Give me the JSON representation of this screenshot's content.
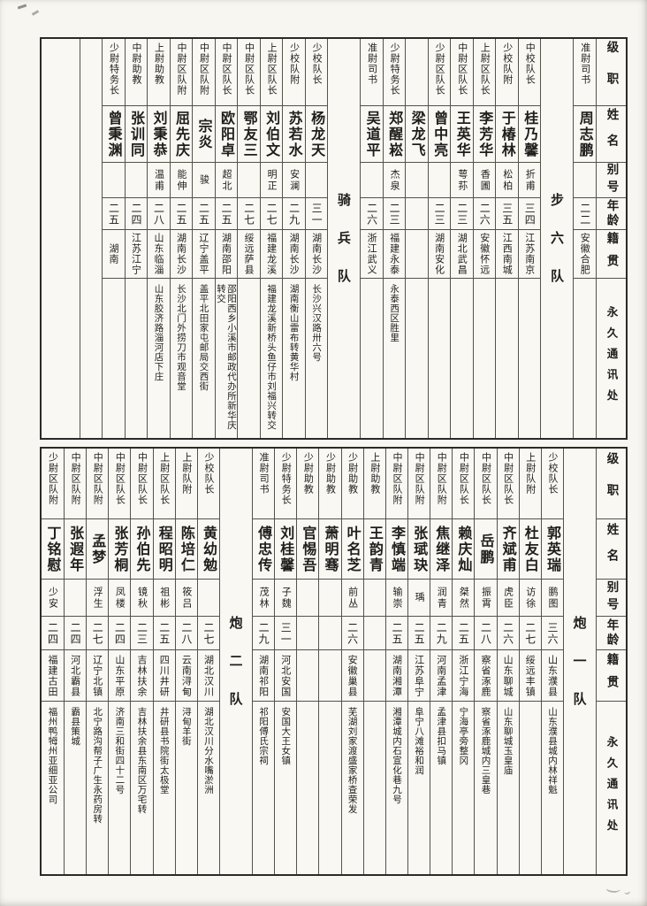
{
  "row_headers": [
    "级职",
    "姓名",
    "别号",
    "年龄",
    "籍贯",
    "永久通讯处"
  ],
  "colors": {
    "page_bg": "#f8f6f1",
    "ink": "#1f1e1c",
    "grid_line": "#55524c",
    "frame": "#2b2a27"
  },
  "tables": [
    {
      "id": "top",
      "columns": [
        {
          "type": "header"
        },
        {
          "type": "person",
          "rank": "准尉司书",
          "name": "周志鹏",
          "alias": "",
          "age": "二二",
          "native": "安徽合肥",
          "address": ""
        },
        {
          "type": "section",
          "label": "步六队"
        },
        {
          "type": "person",
          "rank": "中校队长",
          "name": "桂乃馨",
          "alias": "折甫",
          "age": "三四",
          "native": "江苏南京",
          "address": ""
        },
        {
          "type": "person",
          "rank": "少校队附",
          "name": "于椿林",
          "alias": "松柏",
          "age": "三五",
          "native": "江西南城",
          "address": ""
        },
        {
          "type": "person",
          "rank": "上尉区队长",
          "name": "李芳华",
          "alias": "香圃",
          "age": "二六",
          "native": "安徽怀远",
          "address": ""
        },
        {
          "type": "person",
          "rank": "中尉区队长",
          "name": "王英华",
          "alias": "萼荪",
          "age": "二三",
          "native": "湖北武昌",
          "address": ""
        },
        {
          "type": "person",
          "rank": "少尉区队长",
          "name": "曾中亮",
          "alias": "",
          "age": "二三",
          "native": "湖南安化",
          "address": ""
        },
        {
          "type": "person",
          "rank": "",
          "name": "梁龙飞",
          "alias": "",
          "age": "",
          "native": "",
          "address": ""
        },
        {
          "type": "person",
          "rank": "少尉特务长",
          "name": "郑醒崧",
          "alias": "杰泉",
          "age": "二三",
          "native": "福建永泰",
          "address": "永泰西区胜里"
        },
        {
          "type": "person",
          "rank": "准尉司书",
          "name": "吴道平",
          "alias": "",
          "age": "二六",
          "native": "浙江武义",
          "address": ""
        },
        {
          "type": "section",
          "label": "骑兵队"
        },
        {
          "type": "person",
          "rank": "少校队长",
          "name": "杨龙天",
          "alias": "",
          "age": "三一",
          "native": "湖南长沙",
          "address": "长沙兴汉路卅六号"
        },
        {
          "type": "person",
          "rank": "少校队附",
          "name": "苏若水",
          "alias": "安澜",
          "age": "二九",
          "native": "湖南长沙",
          "address": "湖南衡山雷布转黄华村"
        },
        {
          "type": "person",
          "rank": "上尉区队长",
          "name": "刘伯文",
          "alias": "明正",
          "age": "二七",
          "native": "福建龙溪",
          "address": "福建龙溪新桥头鱼仔市刘福兴转交"
        },
        {
          "type": "person",
          "rank": "中尉区队长",
          "name": "鄂友三",
          "alias": "",
          "age": "二七",
          "native": "绥远萨县",
          "address": ""
        },
        {
          "type": "person",
          "rank": "中尉区队长",
          "name": "欧阳卓",
          "alias": "超北",
          "age": "二五",
          "native": "湖南邵阳",
          "address": "邵阳西乡小溪市邮政代办所新华庆转交"
        },
        {
          "type": "person",
          "rank": "中尉区队附",
          "name": "宗炎",
          "alias": "骏",
          "age": "二五",
          "native": "辽宁盖平",
          "address": "盖平北田家屯邮局交西街"
        },
        {
          "type": "person",
          "rank": "中尉区队附",
          "name": "屈先庆",
          "alias": "能伸",
          "age": "二五",
          "native": "湖南长沙",
          "address": "长沙北门外捞刀市观音堂"
        },
        {
          "type": "person",
          "rank": "上尉助教",
          "name": "刘秉恭",
          "alias": "温甫",
          "age": "二八",
          "native": "山东临淄",
          "address": "山东胶济路淄河店下庄"
        },
        {
          "type": "person",
          "rank": "中尉助教",
          "name": "张训同",
          "alias": "",
          "age": "二四",
          "native": "江苏江宁",
          "address": ""
        },
        {
          "type": "person",
          "rank": "少尉特务长",
          "name": "曾秉渊",
          "alias": "",
          "age": "二五",
          "native": "湖南",
          "address": ""
        },
        {
          "type": "empty"
        },
        {
          "type": "empty"
        }
      ]
    },
    {
      "id": "bottom",
      "columns": [
        {
          "type": "header"
        },
        {
          "type": "section",
          "label": "炮一队"
        },
        {
          "type": "person",
          "rank": "少校队长",
          "name": "郭英瑞",
          "alias": "鹏图",
          "age": "三六",
          "native": "山东濮县",
          "address": "山东濮县城内林祥魁"
        },
        {
          "type": "person",
          "rank": "上尉队附",
          "name": "杜友白",
          "alias": "访徐",
          "age": "二七",
          "native": "绥远丰镇",
          "address": ""
        },
        {
          "type": "person",
          "rank": "中尉区队长",
          "name": "齐斌甫",
          "alias": "虎臣",
          "age": "二六",
          "native": "山东聊城",
          "address": "山东聊城玉皇庙"
        },
        {
          "type": "person",
          "rank": "中尉区队长",
          "name": "岳鹏",
          "alias": "振霄",
          "age": "二八",
          "native": "察省涿鹿",
          "address": "察省涿鹿城内三皇巷"
        },
        {
          "type": "person",
          "rank": "中尉区队长",
          "name": "赖庆灿",
          "alias": "桀然",
          "age": "二五",
          "native": "浙江宁海",
          "address": "宁海亭旁整冈"
        },
        {
          "type": "person",
          "rank": "中尉区队附",
          "name": "焦继泽",
          "alias": "润青",
          "age": "二九",
          "native": "河南孟津",
          "address": "孟津县扣马镇"
        },
        {
          "type": "person",
          "rank": "中尉区队附",
          "name": "张珷玦",
          "alias": "瑀",
          "age": "二五",
          "native": "江苏阜宁",
          "address": "阜宁八滩裕和润"
        },
        {
          "type": "person",
          "rank": "中尉区队附",
          "name": "李慎端",
          "alias": "输崇",
          "age": "二五",
          "native": "湖南湘潭",
          "address": "湘潭城内石宣化巷九号"
        },
        {
          "type": "person",
          "rank": "上尉助教",
          "name": "王韵青",
          "alias": "",
          "age": "",
          "native": "",
          "address": ""
        },
        {
          "type": "person",
          "rank": "少尉助教",
          "name": "叶名芝",
          "alias": "前丛",
          "age": "二六",
          "native": "安徽巢县",
          "address": "芜湖刘家渡盛家桥查荣发"
        },
        {
          "type": "person",
          "rank": "少尉助教",
          "name": "萧明骞",
          "alias": "",
          "age": "",
          "native": "",
          "address": ""
        },
        {
          "type": "person",
          "rank": "少尉助教",
          "name": "官惕吾",
          "alias": "",
          "age": "",
          "native": "",
          "address": ""
        },
        {
          "type": "person",
          "rank": "少尉特务长",
          "name": "刘桂馨",
          "alias": "子魏",
          "age": "三一",
          "native": "河北安国",
          "address": "安国大王女镇"
        },
        {
          "type": "person",
          "rank": "准尉司书",
          "name": "傅忠传",
          "alias": "茂林",
          "age": "二九",
          "native": "湖南祁阳",
          "address": "祁阳傅氏宗祠"
        },
        {
          "type": "section",
          "label": "炮二队"
        },
        {
          "type": "person",
          "rank": "少校队长",
          "name": "黄幼勉",
          "alias": "",
          "age": "二七",
          "native": "湖北汉川",
          "address": "湖北汉川分水嘴淤洲"
        },
        {
          "type": "person",
          "rank": "上尉队附",
          "name": "陈培仁",
          "alias": "筱吕",
          "age": "二八",
          "native": "云南浔甸",
          "address": "浔甸羊街"
        },
        {
          "type": "person",
          "rank": "上尉区队长",
          "name": "程昭明",
          "alias": "祖彬",
          "age": "二五",
          "native": "四川井研",
          "address": "井研县书院街太极堂"
        },
        {
          "type": "person",
          "rank": "中尉区队长",
          "name": "孙伯先",
          "alias": "镜秋",
          "age": "二三",
          "native": "吉林扶余",
          "address": "吉林扶余县东南区万宅转"
        },
        {
          "type": "person",
          "rank": "中尉区队长",
          "name": "张芳桐",
          "alias": "凤楼",
          "age": "二四",
          "native": "山东平原",
          "address": "济南三和街四十二号"
        },
        {
          "type": "person",
          "rank": "中尉区队附",
          "name": "孟梦",
          "alias": "浮生",
          "age": "二七",
          "native": "辽宁北镇",
          "address": "北宁路沟帮子广生永药房转"
        },
        {
          "type": "person",
          "rank": "中尉区队附",
          "name": "张遐年",
          "alias": "",
          "age": "二四",
          "native": "河北霸县",
          "address": "霸县策城"
        },
        {
          "type": "person",
          "rank": "少尉区队附",
          "name": "丁铭慰",
          "alias": "少安",
          "age": "二四",
          "native": "福建古田",
          "address": "福州鸭牳州亚细亚公司"
        }
      ]
    }
  ]
}
